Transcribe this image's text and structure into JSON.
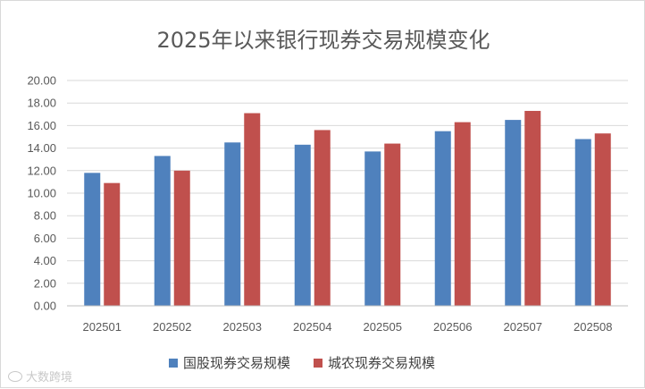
{
  "chart_data": {
    "type": "bar",
    "title": "2025年以来银行现券交易规模变化",
    "categories": [
      "202501",
      "202502",
      "202503",
      "202504",
      "202505",
      "202506",
      "202507",
      "202508"
    ],
    "series": [
      {
        "name": "国股现券交易规模",
        "color": "#4f81bd",
        "values": [
          11.8,
          13.3,
          14.5,
          14.3,
          13.7,
          15.5,
          16.5,
          14.8
        ]
      },
      {
        "name": "城农现券交易规模",
        "color": "#c0504d",
        "values": [
          10.9,
          12.0,
          17.1,
          15.6,
          14.4,
          16.3,
          17.3,
          15.3
        ]
      }
    ],
    "yticks": [
      "0.00",
      "2.00",
      "4.00",
      "6.00",
      "8.00",
      "10.00",
      "12.00",
      "14.00",
      "16.00",
      "18.00",
      "20.00"
    ],
    "ylim": [
      0,
      20
    ],
    "grid": true,
    "legend_position": "bottom"
  },
  "watermark": {
    "text": "大数跨境"
  }
}
